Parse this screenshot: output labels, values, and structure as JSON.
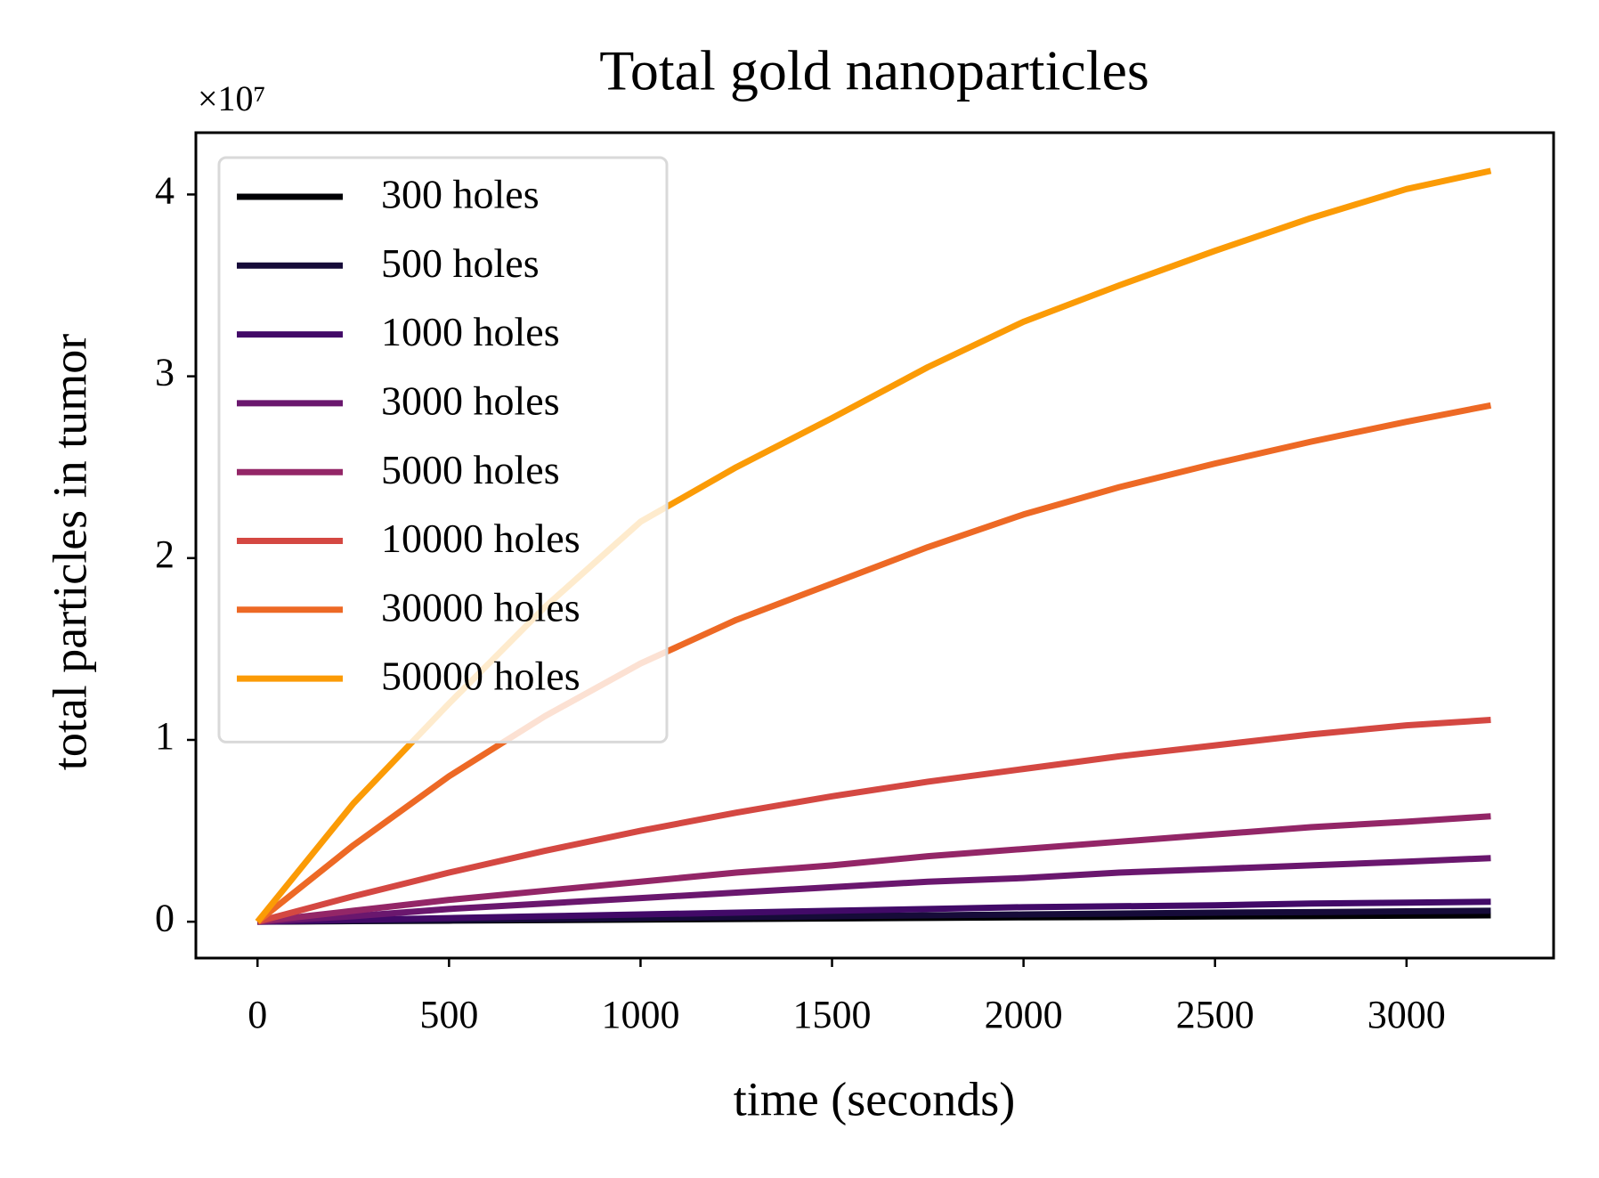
{
  "chart_data": {
    "type": "line",
    "title": "Total gold nanoparticles",
    "xlabel": "time (seconds)",
    "ylabel": "total particles in tumor",
    "y_offset_label": "×10⁷",
    "x": [
      0,
      250,
      500,
      750,
      1000,
      1250,
      1500,
      1750,
      2000,
      2250,
      2500,
      2750,
      3000,
      3220
    ],
    "series": [
      {
        "name": "300 holes",
        "color": "#000004",
        "values": [
          0,
          0.003,
          0.006,
          0.009,
          0.012,
          0.015,
          0.018,
          0.021,
          0.024,
          0.026,
          0.029,
          0.031,
          0.033,
          0.035
        ]
      },
      {
        "name": "500 holes",
        "color": "#160b39",
        "values": [
          0,
          0.005,
          0.01,
          0.015,
          0.02,
          0.025,
          0.03,
          0.035,
          0.04,
          0.045,
          0.05,
          0.053,
          0.057,
          0.06
        ]
      },
      {
        "name": "1000 holes",
        "color": "#420a68",
        "values": [
          0,
          0.01,
          0.02,
          0.03,
          0.04,
          0.05,
          0.06,
          0.07,
          0.08,
          0.085,
          0.09,
          0.1,
          0.105,
          0.11
        ]
      },
      {
        "name": "3000 holes",
        "color": "#6a176e",
        "values": [
          0,
          0.03,
          0.07,
          0.1,
          0.13,
          0.16,
          0.19,
          0.22,
          0.24,
          0.27,
          0.29,
          0.31,
          0.33,
          0.35
        ]
      },
      {
        "name": "5000 holes",
        "color": "#932667",
        "values": [
          0,
          0.06,
          0.12,
          0.17,
          0.22,
          0.27,
          0.31,
          0.36,
          0.4,
          0.44,
          0.48,
          0.52,
          0.55,
          0.58
        ]
      },
      {
        "name": "10000 holes",
        "color": "#d44842",
        "values": [
          0,
          0.14,
          0.27,
          0.39,
          0.5,
          0.6,
          0.69,
          0.77,
          0.84,
          0.91,
          0.97,
          1.03,
          1.08,
          1.11
        ]
      },
      {
        "name": "30000 holes",
        "color": "#ed6925",
        "values": [
          0,
          0.42,
          0.8,
          1.13,
          1.42,
          1.66,
          1.86,
          2.06,
          2.24,
          2.39,
          2.52,
          2.64,
          2.75,
          2.84
        ]
      },
      {
        "name": "50000 holes",
        "color": "#fb9b06",
        "values": [
          0,
          0.65,
          1.2,
          1.73,
          2.2,
          2.5,
          2.77,
          3.05,
          3.3,
          3.5,
          3.69,
          3.87,
          4.03,
          4.13
        ]
      }
    ],
    "xlim": [
      -161,
      3384
    ],
    "xticks": [
      0,
      500,
      1000,
      1500,
      2000,
      2500,
      3000
    ],
    "ylim": [
      -0.2,
      4.34
    ],
    "yticks": [
      0,
      1,
      2,
      3,
      4
    ],
    "grid": false,
    "legend": "upper left"
  }
}
